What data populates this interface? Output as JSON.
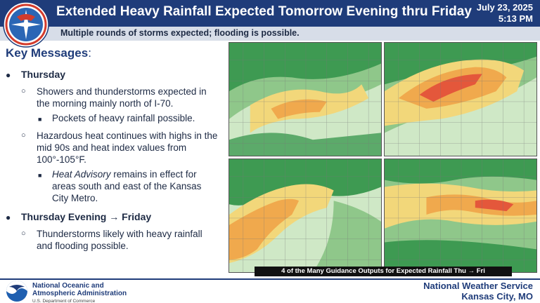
{
  "header": {
    "title": "Extended Heavy Rainfall Expected Tomorrow Evening thru Friday",
    "date": "July 23, 2025",
    "time": "5:13 PM",
    "subtitle": "Multiple rounds of storms expected; flooding is possible."
  },
  "key_messages": {
    "title": "Key Messages",
    "sections": [
      {
        "heading": "Thursday",
        "items": [
          {
            "text": "Showers and thunderstorms expected in the morning mainly north of I-70.",
            "sub": "Pockets of heavy rainfall possible."
          },
          {
            "text": "Hazardous heat continues with highs in the mid 90s and heat index values from 100°-105°F.",
            "sub_italic": "Heat Advisory",
            "sub_rest": " remains in effect for areas south and east of the Kansas City Metro."
          }
        ]
      },
      {
        "heading": "Thursday Evening → Friday",
        "items": [
          {
            "text": "Thunderstorms likely with heavy rainfall and flooding possible."
          }
        ]
      }
    ]
  },
  "maps": {
    "caption": "4 of the Many Guidance Outputs for Expected Rainfall Thu → Fri",
    "colors": {
      "light": "#cfe8c6",
      "green": "#8fc78a",
      "dark_green": "#3e9a52",
      "yellow": "#f2d77a",
      "orange": "#f0a94d",
      "red": "#e4573b"
    }
  },
  "footer": {
    "agency_line1": "National Oceanic and",
    "agency_line2": "Atmospheric Administration",
    "agency_line3": "U.S. Department of Commerce",
    "office_line1": "National Weather Service",
    "office_line2": "Kansas City, MO"
  },
  "logos": {
    "nws_logo_text": "NATIONAL WEATHER SERVICE",
    "noaa_logo_text": "NOAA"
  }
}
